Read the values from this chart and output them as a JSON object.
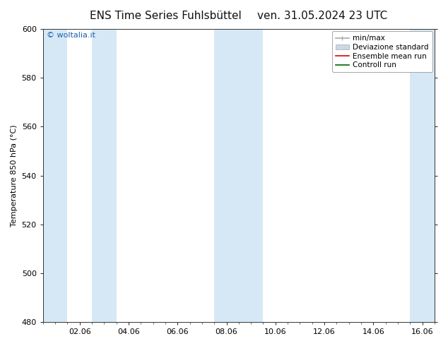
{
  "title_left": "ENS Time Series Fuhlsbüttel",
  "title_right": "ven. 31.05.2024 23 UTC",
  "ylabel": "Temperature 850 hPa (°C)",
  "ylim": [
    480,
    600
  ],
  "yticks": [
    480,
    500,
    520,
    540,
    560,
    580,
    600
  ],
  "xtick_labels": [
    "02.06",
    "04.06",
    "06.06",
    "08.06",
    "10.06",
    "12.06",
    "14.06",
    "16.06"
  ],
  "xtick_positions": [
    2,
    4,
    6,
    8,
    10,
    12,
    14,
    16
  ],
  "xlim": [
    0.5,
    16.5
  ],
  "x_data_start": 0.5,
  "x_data_end": 16.5,
  "watermark": "© woltalia.it",
  "watermark_color": "#1a5fb0",
  "bg_color": "#ffffff",
  "plot_bg_color": "#ffffff",
  "shaded_bands": [
    {
      "xmin": 0.5,
      "xmax": 1.5
    },
    {
      "xmin": 2.5,
      "xmax": 3.5
    },
    {
      "xmin": 7.5,
      "xmax": 9.5
    },
    {
      "xmin": 15.5,
      "xmax": 16.5
    }
  ],
  "shaded_color": "#d6e8f5",
  "legend_items": [
    {
      "label": "min/max",
      "color": "#aaaaaa",
      "lw": 1.2,
      "style": "minmax"
    },
    {
      "label": "Deviazione standard",
      "color": "#c8d8e8",
      "lw": 6,
      "style": "box"
    },
    {
      "label": "Ensemble mean run",
      "color": "#dd0000",
      "lw": 1.2,
      "style": "line"
    },
    {
      "label": "Controll run",
      "color": "#006600",
      "lw": 1.2,
      "style": "line"
    }
  ],
  "title_fontsize": 11,
  "tick_fontsize": 8,
  "ylabel_fontsize": 8,
  "legend_fontsize": 7.5
}
